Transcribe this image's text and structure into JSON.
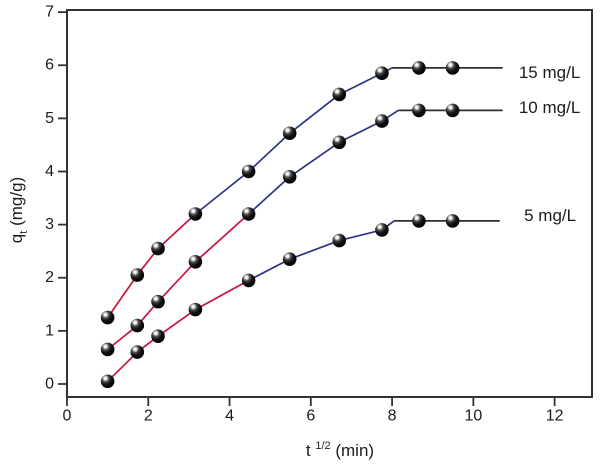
{
  "figure": {
    "background": "#ffffff",
    "description": "Intraparticle diffusion plot: qt versus square root of time for three initial concentrations"
  },
  "chart_data": {
    "type": "scatter",
    "title": "",
    "xlabel": "t 1/2 (min)",
    "ylabel": "qt (mg/g)",
    "xlabel_parts": {
      "base": "t ",
      "sup": "1/2",
      "unit": " (min)"
    },
    "ylabel_parts": {
      "base": "q",
      "sub": "t",
      "unit": " (mg/g)"
    },
    "xlim": [
      0,
      12.92
    ],
    "ylim": [
      -0.245,
      7.04
    ],
    "x_ticks": [
      0,
      2,
      4,
      6,
      8,
      10,
      12
    ],
    "y_ticks": [
      0,
      1,
      2,
      3,
      4,
      5,
      6,
      7
    ],
    "grid": false,
    "legend_position": "inline-right",
    "marker": {
      "shape": "sphere",
      "fill": "#000000",
      "highlight": "#ffffff",
      "radius_px": 6.8
    },
    "colors": {
      "red": "#c8143c",
      "blue": "#2a3480",
      "black": "#2e2e2e",
      "frame": "#323232",
      "text": "#1c1c1c"
    },
    "x_values": [
      1.0,
      1.73,
      2.24,
      3.16,
      4.47,
      5.48,
      6.7,
      7.75,
      8.66,
      9.49
    ],
    "series": [
      {
        "id": "15mgl",
        "name": "15 mg/L",
        "values": [
          1.25,
          2.05,
          2.55,
          3.2,
          4.0,
          4.72,
          5.45,
          5.85,
          5.95,
          5.95
        ],
        "segments": [
          {
            "color_key": "red",
            "points": [
              [
                1.0,
                1.25
              ],
              [
                1.73,
                2.05
              ],
              [
                2.24,
                2.55
              ],
              [
                3.16,
                3.2
              ]
            ]
          },
          {
            "color_key": "blue",
            "points": [
              [
                3.16,
                3.2
              ],
              [
                4.47,
                4.0
              ],
              [
                5.48,
                4.72
              ],
              [
                6.7,
                5.45
              ],
              [
                7.75,
                5.85
              ],
              [
                8.0,
                5.95
              ]
            ]
          },
          {
            "color_key": "black",
            "points": [
              [
                8.0,
                5.95
              ],
              [
                10.72,
                5.95
              ]
            ]
          }
        ],
        "label": {
          "text": "15 mg/L",
          "x": 11.12,
          "y": 5.86
        }
      },
      {
        "id": "10mgl",
        "name": "10 mg/L",
        "values": [
          0.65,
          1.1,
          1.55,
          2.3,
          3.2,
          3.9,
          4.55,
          4.95,
          5.15,
          5.15
        ],
        "segments": [
          {
            "color_key": "red",
            "points": [
              [
                1.0,
                0.65
              ],
              [
                1.73,
                1.1
              ],
              [
                2.24,
                1.55
              ],
              [
                3.16,
                2.3
              ],
              [
                4.47,
                3.2
              ]
            ]
          },
          {
            "color_key": "blue",
            "points": [
              [
                4.47,
                3.2
              ],
              [
                5.48,
                3.9
              ],
              [
                6.7,
                4.55
              ],
              [
                7.75,
                4.95
              ],
              [
                8.15,
                5.15
              ]
            ]
          },
          {
            "color_key": "black",
            "points": [
              [
                8.15,
                5.15
              ],
              [
                10.72,
                5.15
              ]
            ]
          }
        ],
        "label": {
          "text": "10 mg/L",
          "x": 11.12,
          "y": 5.2
        }
      },
      {
        "id": "5mgl",
        "name": "5 mg/L",
        "values": [
          0.05,
          0.6,
          0.9,
          1.4,
          1.95,
          2.35,
          2.7,
          2.9,
          3.07,
          3.07
        ],
        "segments": [
          {
            "color_key": "red",
            "points": [
              [
                1.0,
                0.05
              ],
              [
                1.73,
                0.6
              ],
              [
                2.24,
                0.9
              ],
              [
                3.16,
                1.4
              ],
              [
                4.47,
                1.95
              ]
            ]
          },
          {
            "color_key": "blue",
            "points": [
              [
                4.47,
                1.95
              ],
              [
                5.48,
                2.35
              ],
              [
                6.7,
                2.7
              ],
              [
                7.75,
                2.9
              ],
              [
                8.05,
                3.07
              ]
            ]
          },
          {
            "color_key": "black",
            "points": [
              [
                8.05,
                3.07
              ],
              [
                10.65,
                3.07
              ]
            ]
          }
        ],
        "label": {
          "text": "5 mg/L",
          "x": 11.25,
          "y": 3.17
        }
      }
    ]
  }
}
